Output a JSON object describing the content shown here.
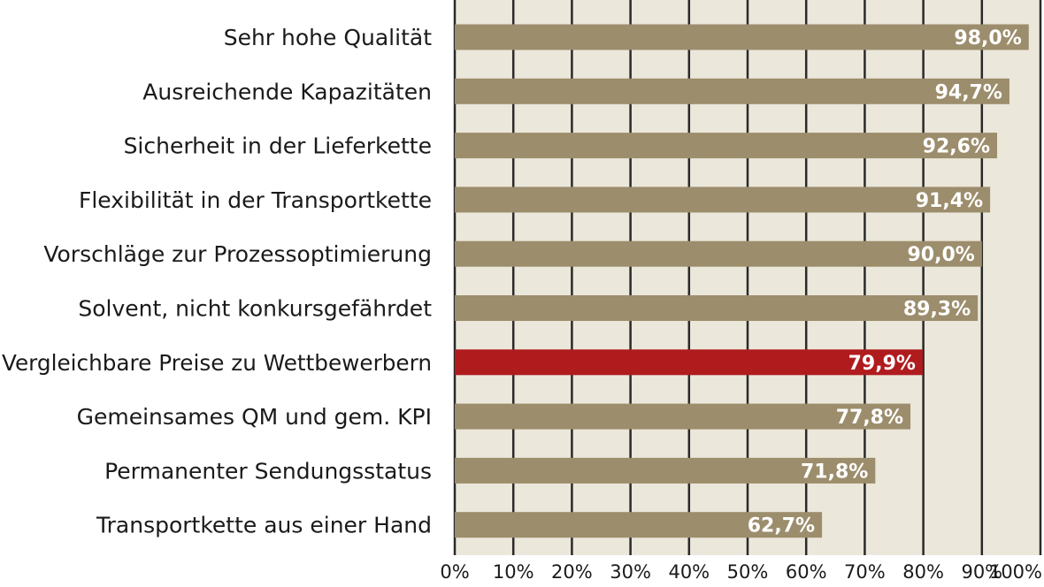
{
  "chart_data": {
    "type": "bar",
    "orientation": "horizontal",
    "categories": [
      "Sehr hohe Qualität",
      "Ausreichende Kapazitäten",
      "Sicherheit in der Lieferkette",
      "Flexibilität in der Transportkette",
      "Vorschläge zur Prozessoptimierung",
      "Solvent, nicht konkursgefährdet",
      "Vergleichbare Preise zu Wettbewerbern",
      "Gemeinsames QM und gem. KPI",
      "Permanenter Sendungsstatus",
      "Transportkette aus einer Hand"
    ],
    "values": [
      98.0,
      94.7,
      92.6,
      91.4,
      90.0,
      89.3,
      79.9,
      77.8,
      71.8,
      62.7
    ],
    "value_labels": [
      "98,0%",
      "94,7%",
      "92,6%",
      "91,4%",
      "90,0%",
      "89,3%",
      "79,9%",
      "77,8%",
      "71,8%",
      "62,7%"
    ],
    "highlight_index": 6,
    "xlim": [
      0,
      100
    ],
    "x_ticks": [
      0,
      10,
      20,
      30,
      40,
      50,
      60,
      70,
      80,
      90,
      100
    ],
    "x_tick_labels": [
      "0%",
      "10%",
      "20%",
      "30%",
      "40%",
      "50%",
      "60%",
      "70%",
      "80%",
      "90%",
      "100%"
    ],
    "title": "",
    "xlabel": "",
    "ylabel": "",
    "grid": true,
    "legend": "none",
    "colors": {
      "bar": "#9c8d6c",
      "highlight": "#b01b1e",
      "plot_background": "#ebe7da",
      "grid": "#2a2a2a",
      "value_text": "#ffffff",
      "label_text": "#1a1a1a"
    }
  }
}
